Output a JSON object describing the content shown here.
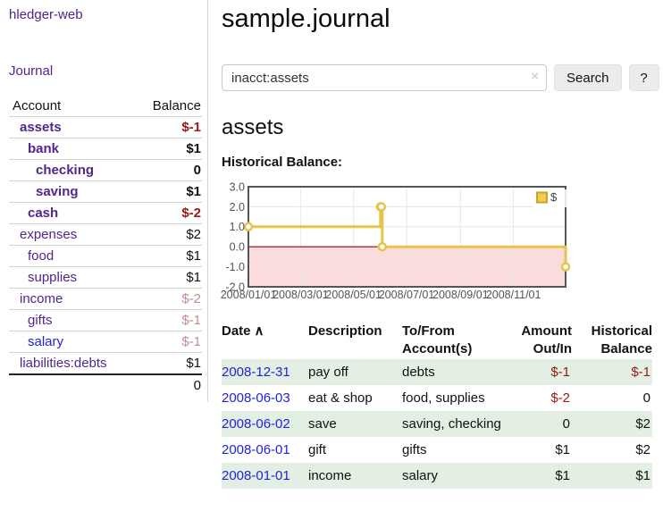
{
  "app": {
    "brand": "hledger-web",
    "nav_journal": "Journal"
  },
  "colors": {
    "link_purple": "#51258f",
    "link_blue": "#2222dd",
    "negative_strong": "#a01717",
    "negative_light": "#c58c8c",
    "row_shade_green": "#e2efe2",
    "chart_line_yellow": "#e9c24b",
    "chart_zero_line": "#8b0000",
    "chart_negative_fill": "#fbdcdc"
  },
  "sidebar_accounts": {
    "col_account": "Account",
    "col_balance": "Balance",
    "rows": [
      {
        "label": "assets",
        "balance": "$-1",
        "indent": 1,
        "bold": true,
        "bal": "neg",
        "link": "v"
      },
      {
        "label": "bank",
        "balance": "$1",
        "indent": 2,
        "bold": true,
        "bal": "",
        "link": "v"
      },
      {
        "label": "checking",
        "balance": "0",
        "indent": 3,
        "bold": true,
        "bal": "",
        "link": "v"
      },
      {
        "label": "saving",
        "balance": "$1",
        "indent": 3,
        "bold": true,
        "bal": "",
        "link": "v"
      },
      {
        "label": "cash",
        "balance": "$-2",
        "indent": 2,
        "bold": true,
        "bal": "neg",
        "link": "v"
      },
      {
        "label": "expenses",
        "balance": "$2",
        "indent": 1,
        "bold": false,
        "bal": "",
        "link": "v"
      },
      {
        "label": "food",
        "balance": "$1",
        "indent": 2,
        "bold": false,
        "bal": "",
        "link": "v"
      },
      {
        "label": "supplies",
        "balance": "$1",
        "indent": 2,
        "bold": false,
        "bal": "",
        "link": "v"
      },
      {
        "label": "income",
        "balance": "$-2",
        "indent": 1,
        "bold": false,
        "bal": "negLight",
        "link": "v"
      },
      {
        "label": "gifts",
        "balance": "$-1",
        "indent": 2,
        "bold": false,
        "bal": "negLight",
        "link": "v"
      },
      {
        "label": "salary",
        "balance": "$-1",
        "indent": 2,
        "bold": false,
        "bal": "negLight",
        "link": "u"
      },
      {
        "label": "liabilities:debts",
        "balance": "$1",
        "indent": 1,
        "bold": false,
        "bal": "",
        "link": "v"
      }
    ],
    "total": "0"
  },
  "main": {
    "title": "sample.journal",
    "search": {
      "value": "inacct:assets",
      "clear_icon": "×",
      "search_button": "Search",
      "help_button": "?"
    },
    "section_title": "assets",
    "chart_label": "Historical Balance:"
  },
  "chart_data": {
    "type": "line",
    "title": "Historical Balance:",
    "legend": "$",
    "legend_position": "top-right",
    "grid": true,
    "x_range": [
      "2008-01-01",
      "2008-12-31"
    ],
    "ylim": [
      -2,
      3
    ],
    "y_ticks": [
      3.0,
      2.0,
      1.0,
      0.0,
      -1.0,
      -2.0
    ],
    "x_ticks": [
      "2008/01/01",
      "2008/03/01",
      "2008/05/01",
      "2008/07/01",
      "2008/09/01",
      "2008/11/01"
    ],
    "series": [
      {
        "name": "$",
        "step": true,
        "points": [
          [
            "2008-01-01",
            1
          ],
          [
            "2008-06-01",
            2
          ],
          [
            "2008-06-02",
            2
          ],
          [
            "2008-06-03",
            0
          ],
          [
            "2008-12-31",
            -1
          ]
        ]
      }
    ]
  },
  "register": {
    "headers": {
      "date": "Date",
      "sort_icon": "∧",
      "description": "Description",
      "accounts": "To/From Account(s)",
      "amount": "Amount Out/In",
      "balance": "Historical Balance"
    },
    "rows": [
      {
        "date": "2008-12-31",
        "desc": "pay off",
        "accounts": "debts",
        "amount": "$-1",
        "balance": "$-1",
        "amtNeg": true,
        "balNeg": true,
        "shade": true
      },
      {
        "date": "2008-06-03",
        "desc": "eat & shop",
        "accounts": "food, supplies",
        "amount": "$-2",
        "balance": "0",
        "amtNeg": true,
        "balNeg": false,
        "shade": false
      },
      {
        "date": "2008-06-02",
        "desc": "save",
        "accounts": "saving, checking",
        "amount": "0",
        "balance": "$2",
        "amtNeg": false,
        "balNeg": false,
        "shade": true
      },
      {
        "date": "2008-06-01",
        "desc": "gift",
        "accounts": "gifts",
        "amount": "$1",
        "balance": "$2",
        "amtNeg": false,
        "balNeg": false,
        "shade": false
      },
      {
        "date": "2008-01-01",
        "desc": "income",
        "accounts": "salary",
        "amount": "$1",
        "balance": "$1",
        "amtNeg": false,
        "balNeg": false,
        "shade": true
      }
    ]
  }
}
